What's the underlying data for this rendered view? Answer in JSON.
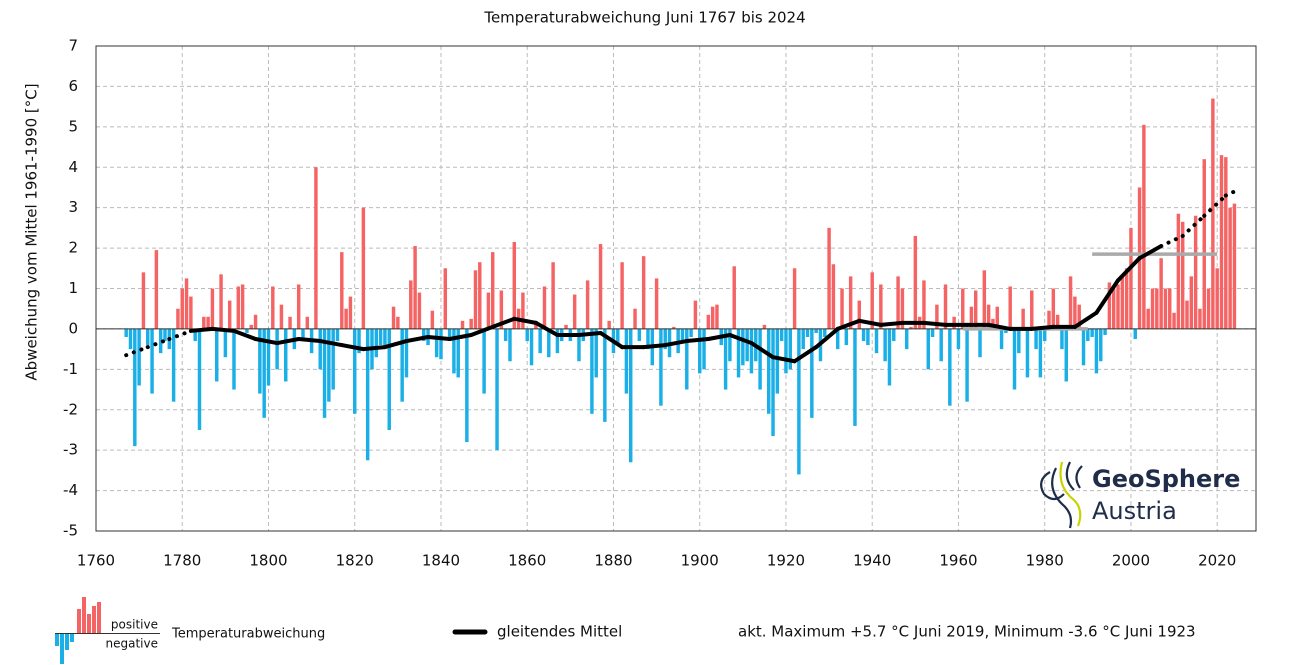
{
  "chart_data": {
    "type": "bar",
    "title": "Temperaturabweichung Juni 1767 bis 2024",
    "y_label": "Abweichung vom Mittel 1961-1990 [°C]",
    "xlim": [
      1760,
      2029
    ],
    "ylim": [
      -5,
      7
    ],
    "xticks": [
      1760,
      1780,
      1800,
      1820,
      1840,
      1860,
      1880,
      1900,
      1920,
      1940,
      1960,
      1980,
      2000,
      2020
    ],
    "yticks": [
      -5,
      -4,
      -3,
      -2,
      -1,
      0,
      1,
      2,
      3,
      4,
      5,
      6,
      7
    ],
    "grid": true,
    "positive_color": "#f46464",
    "negative_color": "#1aafe6",
    "x": [
      1767,
      1768,
      1769,
      1770,
      1771,
      1772,
      1773,
      1774,
      1775,
      1776,
      1777,
      1778,
      1779,
      1780,
      1781,
      1782,
      1783,
      1784,
      1785,
      1786,
      1787,
      1788,
      1789,
      1790,
      1791,
      1792,
      1793,
      1794,
      1795,
      1796,
      1797,
      1798,
      1799,
      1800,
      1801,
      1802,
      1803,
      1804,
      1805,
      1806,
      1807,
      1808,
      1809,
      1810,
      1811,
      1812,
      1813,
      1814,
      1815,
      1816,
      1817,
      1818,
      1819,
      1820,
      1821,
      1822,
      1823,
      1824,
      1825,
      1826,
      1827,
      1828,
      1829,
      1830,
      1831,
      1832,
      1833,
      1834,
      1835,
      1836,
      1837,
      1838,
      1839,
      1840,
      1841,
      1842,
      1843,
      1844,
      1845,
      1846,
      1847,
      1848,
      1849,
      1850,
      1851,
      1852,
      1853,
      1854,
      1855,
      1856,
      1857,
      1858,
      1859,
      1860,
      1861,
      1862,
      1863,
      1864,
      1865,
      1866,
      1867,
      1868,
      1869,
      1870,
      1871,
      1872,
      1873,
      1874,
      1875,
      1876,
      1877,
      1878,
      1879,
      1880,
      1881,
      1882,
      1883,
      1884,
      1885,
      1886,
      1887,
      1888,
      1889,
      1890,
      1891,
      1892,
      1893,
      1894,
      1895,
      1896,
      1897,
      1898,
      1899,
      1900,
      1901,
      1902,
      1903,
      1904,
      1905,
      1906,
      1907,
      1908,
      1909,
      1910,
      1911,
      1912,
      1913,
      1914,
      1915,
      1916,
      1917,
      1918,
      1919,
      1920,
      1921,
      1922,
      1923,
      1924,
      1925,
      1926,
      1927,
      1928,
      1929,
      1930,
      1931,
      1932,
      1933,
      1934,
      1935,
      1936,
      1937,
      1938,
      1939,
      1940,
      1941,
      1942,
      1943,
      1944,
      1945,
      1946,
      1947,
      1948,
      1949,
      1950,
      1951,
      1952,
      1953,
      1954,
      1955,
      1956,
      1957,
      1958,
      1959,
      1960,
      1961,
      1962,
      1963,
      1964,
      1965,
      1966,
      1967,
      1968,
      1969,
      1970,
      1971,
      1972,
      1973,
      1974,
      1975,
      1976,
      1977,
      1978,
      1979,
      1980,
      1981,
      1982,
      1983,
      1984,
      1985,
      1986,
      1987,
      1988,
      1989,
      1990,
      1991,
      1992,
      1993,
      1994,
      1995,
      1996,
      1997,
      1998,
      1999,
      2000,
      2001,
      2002,
      2003,
      2004,
      2005,
      2006,
      2007,
      2008,
      2009,
      2010,
      2011,
      2012,
      2013,
      2014,
      2015,
      2016,
      2017,
      2018,
      2019,
      2020,
      2021,
      2022,
      2023,
      2024
    ],
    "values": [
      -0.2,
      -0.5,
      -2.9,
      -1.4,
      1.4,
      -0.4,
      -1.6,
      1.95,
      -0.6,
      -0.3,
      -0.5,
      -1.8,
      0.5,
      1.0,
      1.25,
      0.8,
      -0.3,
      -2.5,
      0.3,
      0.3,
      1.0,
      -1.3,
      1.35,
      -0.7,
      0.7,
      -1.5,
      1.05,
      1.1,
      -0.1,
      0.1,
      0.35,
      -1.6,
      -2.2,
      -1.4,
      1.05,
      -1.0,
      0.6,
      -1.3,
      0.3,
      -0.5,
      1.1,
      -0.3,
      0.3,
      -0.6,
      4.0,
      -1.0,
      -2.2,
      -1.8,
      -1.5,
      -0.3,
      1.9,
      0.5,
      0.8,
      -2.1,
      -0.6,
      3.0,
      -3.25,
      -1.0,
      -0.7,
      -0.4,
      -0.4,
      -2.5,
      0.55,
      0.3,
      -1.8,
      -1.2,
      1.2,
      2.05,
      0.9,
      -0.3,
      -0.4,
      0.45,
      -0.7,
      -0.75,
      1.5,
      -0.3,
      -1.1,
      -1.2,
      0.2,
      -2.8,
      0.25,
      1.45,
      1.65,
      -1.6,
      0.9,
      1.9,
      -3.0,
      0.95,
      -0.3,
      -0.8,
      2.15,
      0.5,
      0.9,
      -0.3,
      -0.9,
      0.2,
      -0.6,
      1.05,
      -0.7,
      1.65,
      -0.6,
      -0.3,
      0.1,
      -0.3,
      0.85,
      -0.8,
      -0.3,
      1.2,
      -2.1,
      -1.2,
      2.1,
      -2.3,
      0.2,
      -0.6,
      -0.4,
      1.65,
      -1.6,
      -3.3,
      0.5,
      -0.3,
      1.8,
      -0.5,
      -0.9,
      1.25,
      -1.9,
      -0.5,
      -0.7,
      0.05,
      -0.6,
      -0.3,
      -1.5,
      -0.2,
      0.7,
      -1.1,
      -1.0,
      0.35,
      0.55,
      0.6,
      -0.4,
      -1.5,
      -0.8,
      1.55,
      -1.2,
      -0.9,
      -0.8,
      -1.1,
      -0.8,
      -1.5,
      0.1,
      -2.1,
      -2.65,
      -1.6,
      -0.3,
      -1.1,
      -1.0,
      1.5,
      -3.6,
      -0.5,
      -0.2,
      -2.2,
      -0.1,
      -0.8,
      -0.2,
      2.5,
      1.6,
      -0.5,
      1.0,
      -0.4,
      1.3,
      -2.4,
      0.7,
      -0.3,
      -0.4,
      1.4,
      -0.6,
      1.1,
      -0.8,
      -1.4,
      -0.3,
      1.3,
      1.0,
      -0.5,
      0.05,
      2.3,
      0.3,
      1.2,
      -1.0,
      -0.2,
      0.6,
      -0.8,
      1.1,
      -1.9,
      0.3,
      -0.5,
      1.0,
      -1.8,
      0.55,
      0.95,
      -0.7,
      1.45,
      0.6,
      0.25,
      0.55,
      -0.5,
      -0.1,
      1.05,
      -1.5,
      -0.6,
      0.5,
      -1.2,
      0.95,
      -0.5,
      -1.2,
      -0.3,
      0.45,
      1.0,
      0.35,
      -0.5,
      -1.3,
      1.3,
      0.8,
      0.6,
      -0.9,
      -0.3,
      -0.2,
      -1.1,
      -0.8,
      -0.15,
      1.15,
      1.0,
      1.1,
      1.3,
      1.5,
      2.5,
      -0.25,
      3.5,
      5.05,
      0.5,
      1.0,
      1.0,
      1.75,
      1.0,
      1.0,
      0.4,
      2.85,
      2.65,
      0.7,
      1.3,
      2.8,
      0.5,
      4.2,
      1.0,
      5.7,
      1.5,
      4.3,
      4.25,
      3.0,
      3.1
    ],
    "moving_average": {
      "name": "gleitendes Mittel",
      "color": "#000000",
      "x": [
        1767,
        1772,
        1777,
        1782,
        1787,
        1792,
        1797,
        1802,
        1807,
        1812,
        1817,
        1822,
        1827,
        1832,
        1837,
        1842,
        1847,
        1852,
        1857,
        1862,
        1867,
        1872,
        1877,
        1882,
        1887,
        1892,
        1897,
        1902,
        1907,
        1912,
        1917,
        1922,
        1927,
        1932,
        1937,
        1942,
        1947,
        1952,
        1957,
        1962,
        1967,
        1972,
        1977,
        1982,
        1987,
        1992,
        1997,
        2002,
        2007,
        2012,
        2017,
        2022,
        2024
      ],
      "values": [
        -0.65,
        -0.45,
        -0.25,
        -0.05,
        0.0,
        -0.05,
        -0.25,
        -0.35,
        -0.25,
        -0.3,
        -0.4,
        -0.5,
        -0.45,
        -0.3,
        -0.2,
        -0.25,
        -0.15,
        0.05,
        0.25,
        0.15,
        -0.15,
        -0.15,
        -0.1,
        -0.45,
        -0.45,
        -0.4,
        -0.3,
        -0.25,
        -0.15,
        -0.35,
        -0.7,
        -0.8,
        -0.45,
        0.0,
        0.2,
        0.1,
        0.15,
        0.15,
        0.1,
        0.1,
        0.1,
        0.0,
        0.0,
        0.05,
        0.05,
        0.4,
        1.2,
        1.75,
        2.05,
        2.3,
        2.8,
        3.3,
        3.4
      ],
      "dotted": [
        true,
        true,
        true,
        false,
        false,
        false,
        false,
        false,
        false,
        false,
        false,
        false,
        false,
        false,
        false,
        false,
        false,
        false,
        false,
        false,
        false,
        false,
        false,
        false,
        false,
        false,
        false,
        false,
        false,
        false,
        false,
        false,
        false,
        false,
        false,
        false,
        false,
        false,
        false,
        false,
        false,
        false,
        false,
        false,
        false,
        false,
        false,
        false,
        true,
        true,
        true,
        true,
        true
      ]
    },
    "reference_periods": {
      "color": "#aaaaaa",
      "items": [
        {
          "x": [
            1961,
            1990
          ],
          "value": 0
        },
        {
          "x": [
            1991,
            2020
          ],
          "value": 1.85
        }
      ]
    },
    "legend": {
      "positive": "positive",
      "negative": "negative",
      "bars": "Temperaturabweichung",
      "line": "gleitendes Mittel"
    },
    "note": "akt. Maximum +5.7 °C Juni 2019, Minimum -3.6 °C Juni 1923",
    "logo": {
      "line1": "GeoSphere",
      "line2": "Austria"
    }
  }
}
